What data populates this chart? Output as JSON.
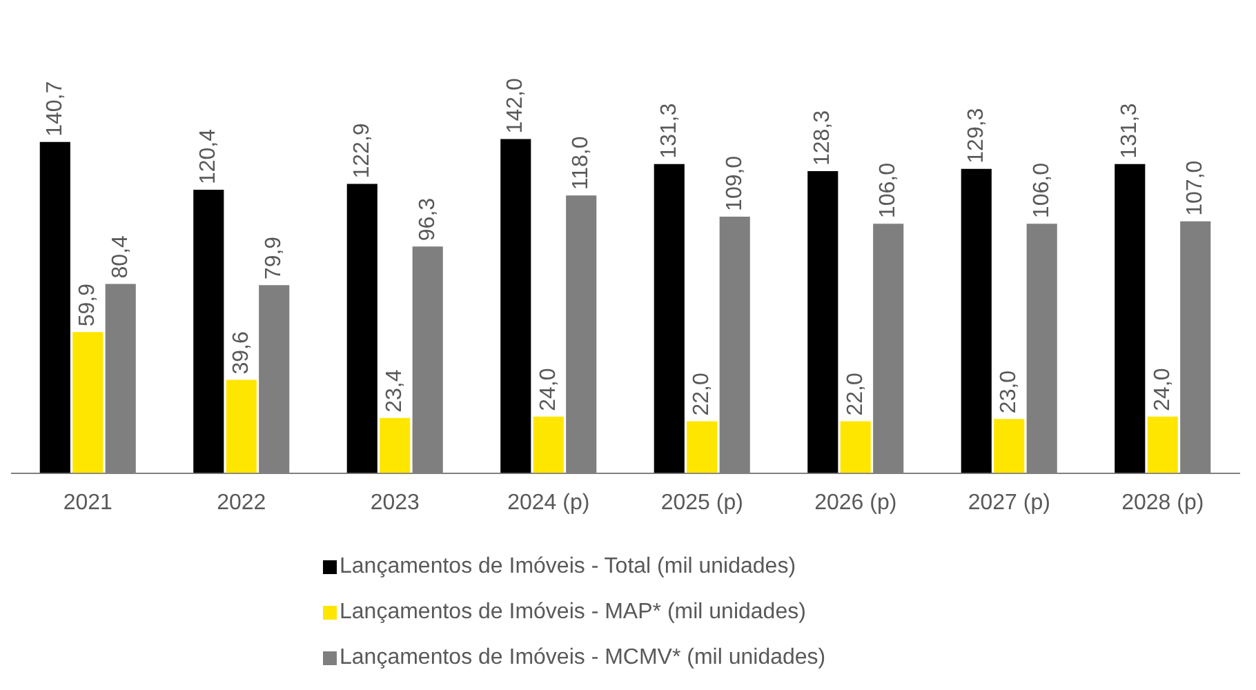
{
  "chart_data": {
    "type": "bar",
    "categories": [
      "2021",
      "2022",
      "2023",
      "2024 (p)",
      "2025 (p)",
      "2026 (p)",
      "2027 (p)",
      "2028 (p)"
    ],
    "series": [
      {
        "name": "Lançamentos de Imóveis - Total (mil unidades)",
        "color": "#000000",
        "values": [
          140.7,
          120.4,
          122.9,
          142.0,
          131.3,
          128.3,
          129.3,
          131.3
        ],
        "value_labels": [
          "140,7",
          "120,4",
          "122,9",
          "142,0",
          "131,3",
          "128,3",
          "129,3",
          "131,3"
        ]
      },
      {
        "name": "Lançamentos de Imóveis - MAP* (mil unidades)",
        "color": "#ffe600",
        "values": [
          59.9,
          39.6,
          23.4,
          24.0,
          22.0,
          22.0,
          23.0,
          24.0
        ],
        "value_labels": [
          "59,9",
          "39,6",
          "23,4",
          "24,0",
          "22,0",
          "22,0",
          "23,0",
          "24,0"
        ]
      },
      {
        "name": "Lançamentos de Imóveis - MCMV* (mil unidades)",
        "color": "#7f7f7f",
        "values": [
          80.4,
          79.9,
          96.3,
          118.0,
          109.0,
          106.0,
          106.0,
          107.0
        ],
        "value_labels": [
          "80,4",
          "79,9",
          "96,3",
          "118,0",
          "109,0",
          "106,0",
          "106,0",
          "107,0"
        ]
      }
    ],
    "legend": "bottom",
    "grid": false,
    "tick_labels": "x"
  }
}
